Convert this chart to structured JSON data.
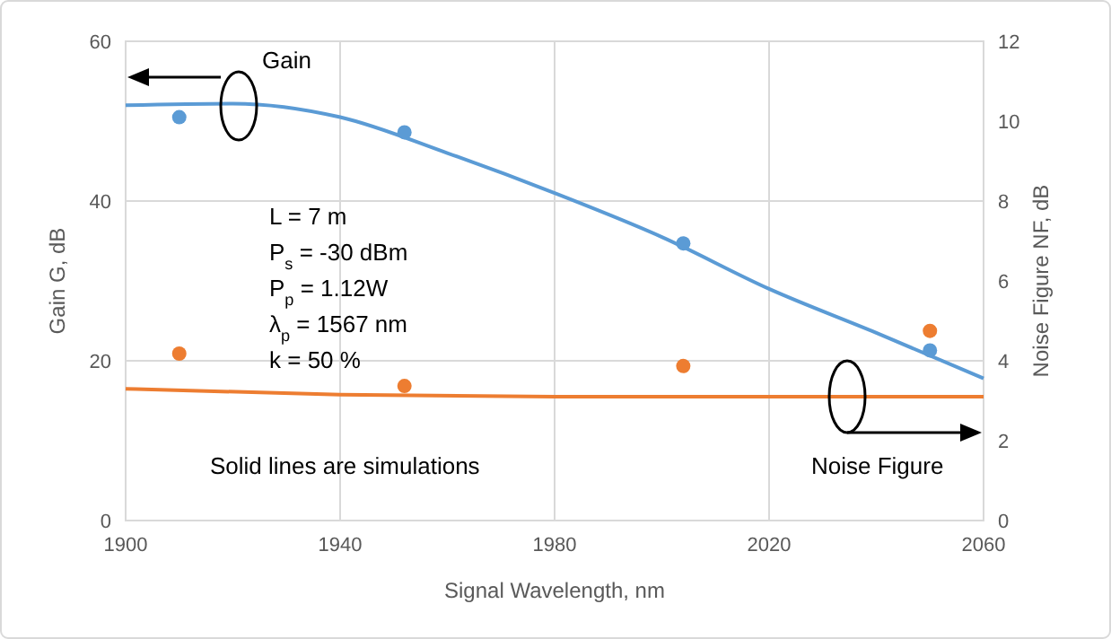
{
  "chart_data": {
    "type": "line",
    "xlabel": "Signal Wavelength, nm",
    "ylabel": "Gain G, dB",
    "y2label": "Noise Figure NF, dB",
    "xlim": [
      1900,
      2060
    ],
    "xticks": [
      1900,
      1940,
      1980,
      2020,
      2060
    ],
    "ylim": [
      0,
      60
    ],
    "yticks": [
      0,
      20,
      40,
      60
    ],
    "y2lim": [
      0,
      12
    ],
    "y2ticks": [
      0,
      2,
      4,
      6,
      8,
      10,
      12
    ],
    "grid": true,
    "series": [
      {
        "color": "#5b9bd5",
        "marker": "none",
        "x": [
          1900,
          1920,
          1940,
          1960,
          1980,
          2000,
          2020,
          2040,
          2060
        ],
        "values": [
          52.0,
          52.2,
          50.5,
          46,
          41,
          35.5,
          29,
          23.5,
          17.8
        ]
      },
      {
        "type": "scatter",
        "color": "#5b9bd5",
        "marker": "circle",
        "x": [
          1910,
          1952,
          2004,
          2050
        ],
        "values": [
          50.5,
          48.6,
          34.7,
          21.3
        ]
      },
      {
        "axis": "y2",
        "color": "#ed7d31",
        "marker": "none",
        "x": [
          1900,
          1940,
          1980,
          2020,
          2060
        ],
        "values": [
          3.3,
          3.15,
          3.1,
          3.1,
          3.1
        ]
      },
      {
        "type": "scatter",
        "axis": "y2",
        "color": "#ed7d31",
        "marker": "circle",
        "x": [
          1910,
          1952,
          2004,
          2050
        ],
        "values": [
          4.18,
          3.37,
          3.87,
          4.75
        ]
      }
    ],
    "annotations": [
      "Gain",
      "L = 7 m",
      "P$_{s}$ = -30 dBm",
      "P$_{p}$ = 1.12W",
      "λ$_{p}$ = 1567 nm",
      "k = 50 %",
      "Solid lines are simulations",
      "Noise Figure"
    ]
  }
}
